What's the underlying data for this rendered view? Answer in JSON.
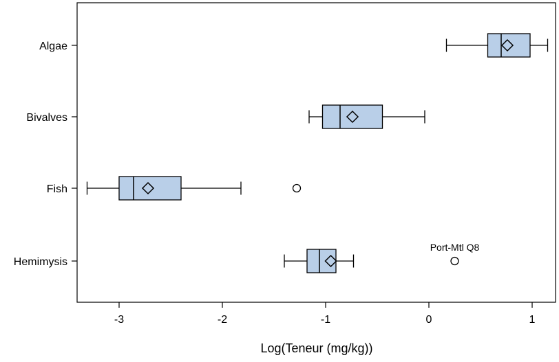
{
  "chart_data": {
    "type": "boxplot",
    "orientation": "horizontal",
    "title": "",
    "xlabel": "Log(Teneur (mg/kg))",
    "ylabel": "",
    "xlim": [
      -3.4,
      1.25
    ],
    "xticks": [
      -3,
      -2,
      -1,
      0,
      1
    ],
    "xtick_labels": [
      "-3",
      "-2",
      "-1",
      "0",
      "1"
    ],
    "categories": [
      "Algae",
      "Bivalves",
      "Fish",
      "Hemimysis"
    ],
    "grid": false,
    "legend": "none",
    "colors": {
      "box_fill": "#b9cfe8",
      "stroke": "#000000"
    },
    "boxes": [
      {
        "category": "Algae",
        "whisker_low": 0.17,
        "q1": 0.57,
        "median": 0.7,
        "q3": 0.98,
        "whisker_high": 1.15,
        "mean": 0.76,
        "outliers": []
      },
      {
        "category": "Bivalves",
        "whisker_low": -1.16,
        "q1": -1.03,
        "median": -0.86,
        "q3": -0.45,
        "whisker_high": -0.04,
        "mean": -0.74,
        "outliers": []
      },
      {
        "category": "Fish",
        "whisker_low": -3.31,
        "q1": -3.0,
        "median": -2.86,
        "q3": -2.4,
        "whisker_high": -1.82,
        "mean": -2.72,
        "outliers": [
          {
            "value": -1.28,
            "label": ""
          }
        ]
      },
      {
        "category": "Hemimysis",
        "whisker_low": -1.4,
        "q1": -1.18,
        "median": -1.06,
        "q3": -0.9,
        "whisker_high": -0.73,
        "mean": -0.95,
        "outliers": [
          {
            "value": 0.25,
            "label": "Port-Mtl Q8"
          }
        ]
      }
    ]
  }
}
